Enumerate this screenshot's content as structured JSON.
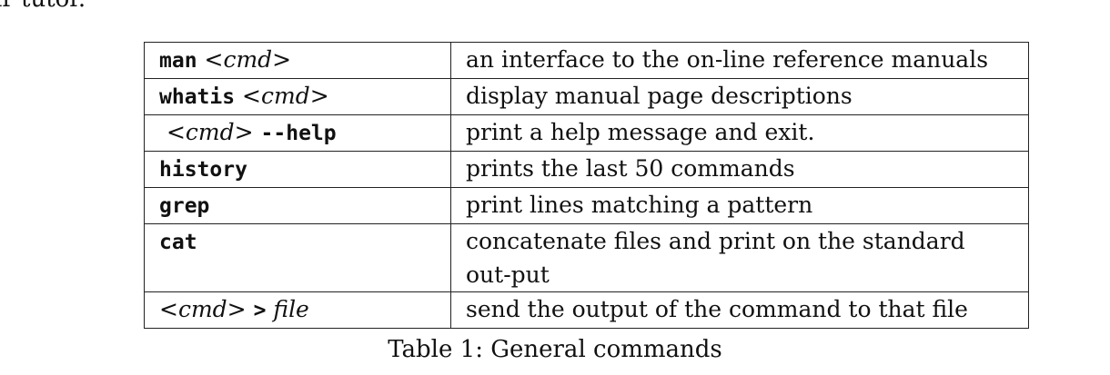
{
  "top_fragment": "ir tutor.",
  "table": {
    "rows": [
      {
        "cmd_text": "man",
        "arg": "cmd",
        "suffix": "",
        "description": "an interface to the on-line reference manuals"
      },
      {
        "cmd_text": "whatis",
        "arg": "cmd",
        "suffix": "",
        "description": "display manual page descriptions"
      },
      {
        "cmd_text": "",
        "arg": "cmd",
        "suffix": "--help",
        "description": "print a help message and exit."
      },
      {
        "cmd_text": "history",
        "arg": "",
        "suffix": "",
        "description": "prints the last 50 commands"
      },
      {
        "cmd_text": "grep",
        "arg": "",
        "suffix": "",
        "description": "print lines matching a pattern"
      },
      {
        "cmd_text": "cat",
        "arg": "",
        "suffix": "",
        "description": "concatenate files and print on the standard out-put"
      },
      {
        "cmd_text": "",
        "arg": "cmd",
        "suffix": ">",
        "file": "file",
        "description": "send the output of the command to that file"
      }
    ],
    "symbols": {
      "lt": "<",
      "gt": ">"
    }
  },
  "caption": "Table 1: General commands"
}
